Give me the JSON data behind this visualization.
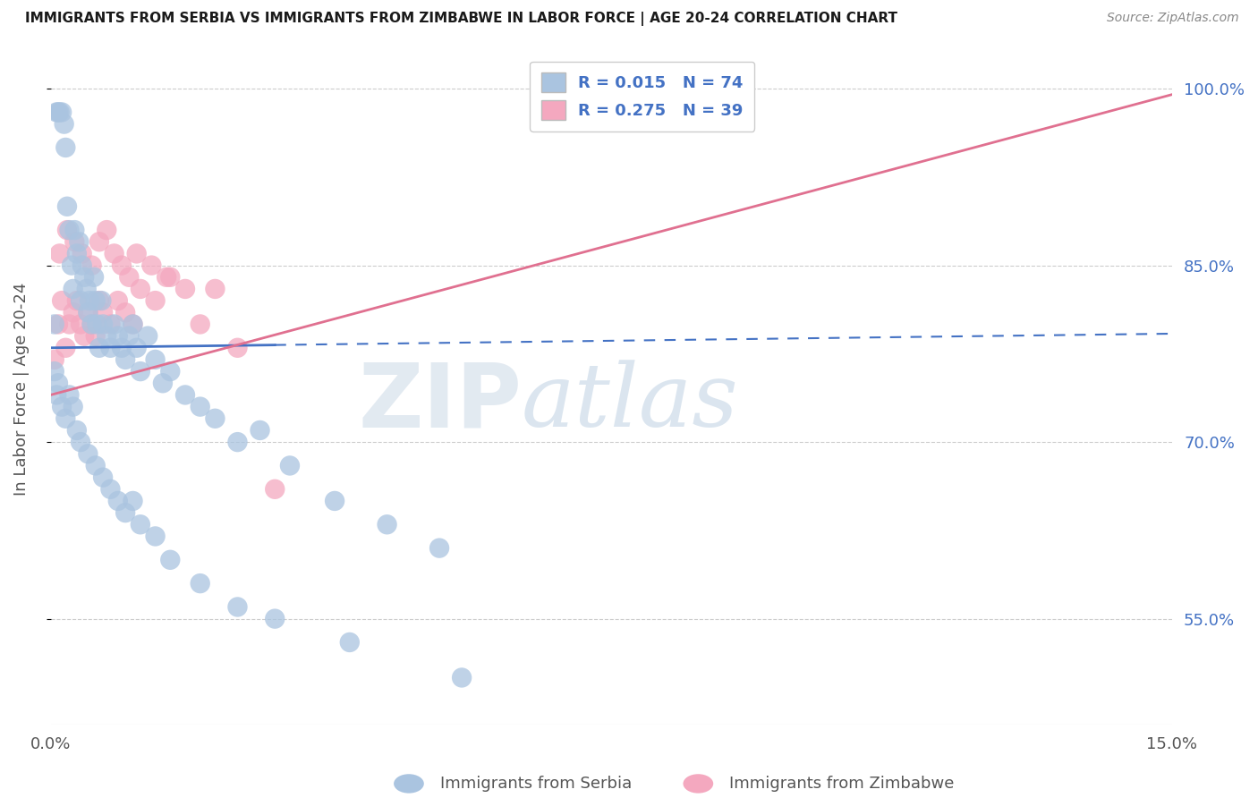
{
  "title": "IMMIGRANTS FROM SERBIA VS IMMIGRANTS FROM ZIMBABWE IN LABOR FORCE | AGE 20-24 CORRELATION CHART",
  "source": "Source: ZipAtlas.com",
  "ylabel": "In Labor Force | Age 20-24",
  "xlim": [
    0.0,
    15.0
  ],
  "ylim": [
    46.0,
    103.0
  ],
  "yticks": [
    100.0,
    85.0,
    70.0,
    55.0
  ],
  "serbia_R": 0.015,
  "serbia_N": 74,
  "zimbabwe_R": 0.275,
  "zimbabwe_N": 39,
  "serbia_color": "#aac4e0",
  "zimbabwe_color": "#f4a8bf",
  "serbia_line_color": "#4472c4",
  "zimbabwe_line_color": "#e07090",
  "background_color": "#ffffff",
  "serbia_x": [
    0.05,
    0.08,
    0.1,
    0.12,
    0.15,
    0.18,
    0.2,
    0.22,
    0.25,
    0.28,
    0.3,
    0.32,
    0.35,
    0.38,
    0.4,
    0.42,
    0.45,
    0.48,
    0.5,
    0.52,
    0.55,
    0.58,
    0.6,
    0.62,
    0.65,
    0.68,
    0.7,
    0.75,
    0.8,
    0.85,
    0.9,
    0.95,
    1.0,
    1.05,
    1.1,
    1.15,
    1.2,
    1.3,
    1.4,
    1.5,
    1.6,
    1.8,
    2.0,
    2.2,
    2.5,
    2.8,
    3.2,
    3.8,
    4.5,
    5.2,
    0.05,
    0.08,
    0.1,
    0.15,
    0.2,
    0.25,
    0.3,
    0.35,
    0.4,
    0.5,
    0.6,
    0.7,
    0.8,
    0.9,
    1.0,
    1.1,
    1.2,
    1.4,
    1.6,
    2.0,
    2.5,
    3.0,
    4.0,
    5.5
  ],
  "serbia_y": [
    80.0,
    98.0,
    98.0,
    98.0,
    98.0,
    97.0,
    95.0,
    90.0,
    88.0,
    85.0,
    83.0,
    88.0,
    86.0,
    87.0,
    82.0,
    85.0,
    84.0,
    83.0,
    81.0,
    82.0,
    80.0,
    84.0,
    82.0,
    80.0,
    78.0,
    82.0,
    80.0,
    79.0,
    78.0,
    80.0,
    79.0,
    78.0,
    77.0,
    79.0,
    80.0,
    78.0,
    76.0,
    79.0,
    77.0,
    75.0,
    76.0,
    74.0,
    73.0,
    72.0,
    70.0,
    71.0,
    68.0,
    65.0,
    63.0,
    61.0,
    76.0,
    74.0,
    75.0,
    73.0,
    72.0,
    74.0,
    73.0,
    71.0,
    70.0,
    69.0,
    68.0,
    67.0,
    66.0,
    65.0,
    64.0,
    65.0,
    63.0,
    62.0,
    60.0,
    58.0,
    56.0,
    55.0,
    53.0,
    50.0
  ],
  "zimbabwe_x": [
    0.05,
    0.1,
    0.15,
    0.2,
    0.25,
    0.3,
    0.35,
    0.4,
    0.45,
    0.5,
    0.55,
    0.6,
    0.65,
    0.7,
    0.8,
    0.9,
    1.0,
    1.1,
    1.2,
    1.4,
    1.6,
    1.8,
    2.0,
    2.5,
    3.0,
    0.12,
    0.22,
    0.32,
    0.42,
    0.55,
    0.65,
    0.75,
    0.85,
    0.95,
    1.05,
    1.15,
    1.35,
    1.55,
    2.2
  ],
  "zimbabwe_y": [
    77.0,
    80.0,
    82.0,
    78.0,
    80.0,
    81.0,
    82.0,
    80.0,
    79.0,
    81.0,
    80.0,
    79.0,
    82.0,
    81.0,
    80.0,
    82.0,
    81.0,
    80.0,
    83.0,
    82.0,
    84.0,
    83.0,
    80.0,
    78.0,
    66.0,
    86.0,
    88.0,
    87.0,
    86.0,
    85.0,
    87.0,
    88.0,
    86.0,
    85.0,
    84.0,
    86.0,
    85.0,
    84.0,
    83.0
  ],
  "watermark_zip": "ZIP",
  "watermark_atlas": "atlas"
}
